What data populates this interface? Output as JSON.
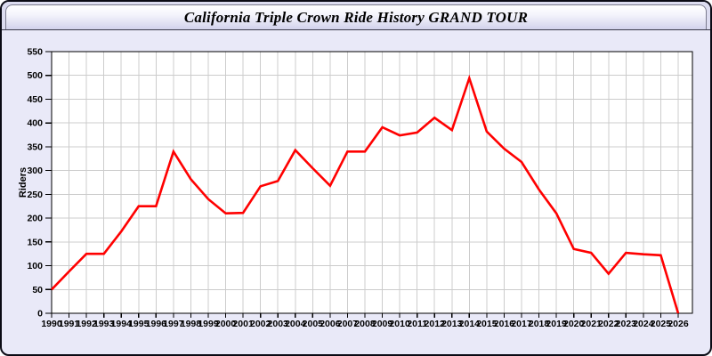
{
  "window": {
    "title": "California Triple Crown Ride History GRAND TOUR"
  },
  "chart_data": {
    "type": "line",
    "title": "California Triple Crown Ride History GRAND TOUR",
    "xlabel": "",
    "ylabel": "Riders",
    "x": [
      1990,
      1991,
      1992,
      1993,
      1994,
      1995,
      1996,
      1997,
      1998,
      1999,
      2000,
      2001,
      2002,
      2003,
      2004,
      2005,
      2006,
      2007,
      2008,
      2009,
      2010,
      2011,
      2012,
      2013,
      2014,
      2015,
      2016,
      2017,
      2018,
      2019,
      2020,
      2021,
      2022,
      2023,
      2024,
      2025,
      2026
    ],
    "series": [
      {
        "name": "Riders",
        "values": [
          50,
          88,
          125,
          125,
          172,
          225,
          225,
          340,
          282,
          240,
          210,
          211,
          267,
          278,
          343,
          305,
          268,
          340,
          340,
          391,
          374,
          380,
          411,
          385,
          494,
          382,
          346,
          318,
          260,
          210,
          135,
          127,
          83,
          127,
          124,
          122,
          0
        ]
      }
    ],
    "ylim": [
      0,
      550
    ],
    "yticks": [
      0,
      50,
      100,
      150,
      200,
      250,
      300,
      350,
      400,
      450,
      500,
      550
    ],
    "grid": true,
    "legend_position": "none",
    "line_color": "#ff0000",
    "grid_color": "#cccccc",
    "axis_color": "#000000",
    "plot_bg": "#ffffff",
    "page_bg": "#e9e9f8",
    "tick_label_color": "#000000"
  }
}
